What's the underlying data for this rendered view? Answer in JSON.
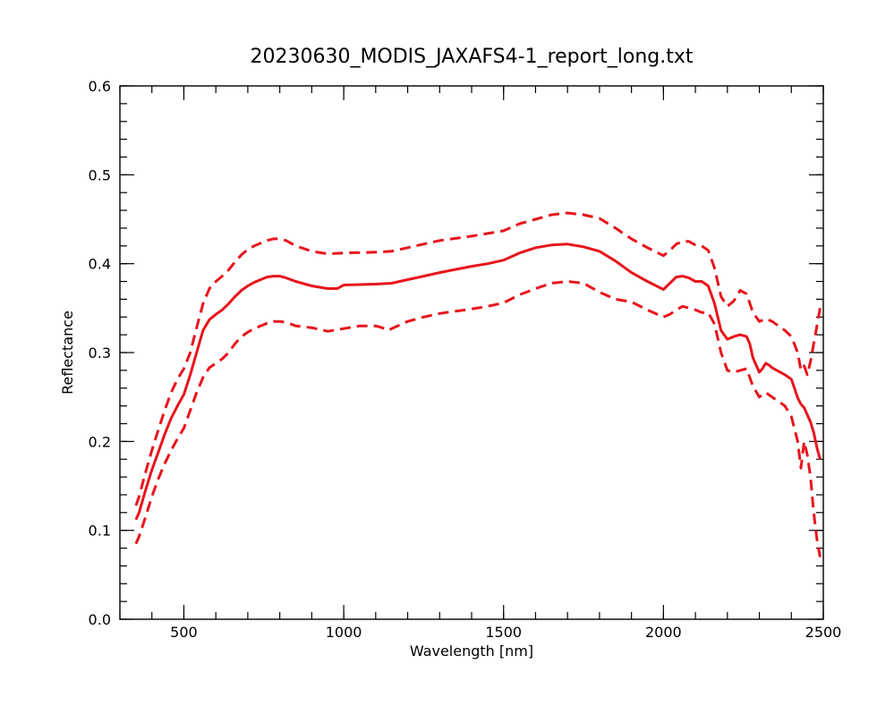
{
  "chart_data": {
    "type": "line",
    "title": "20230630_MODIS_JAXAFS4-1_report_long.txt",
    "xlabel": "Wavelength [nm]",
    "ylabel": "Reflectance",
    "xlim": [
      300,
      2500
    ],
    "ylim": [
      0.0,
      0.6
    ],
    "x_ticks": [
      500,
      1000,
      1500,
      2000,
      2500
    ],
    "x_tick_labels": [
      "500",
      "1000",
      "1500",
      "2000",
      "2500"
    ],
    "x_minor_step": 100,
    "y_ticks": [
      0.0,
      0.1,
      0.2,
      0.3,
      0.4,
      0.5,
      0.6
    ],
    "y_tick_labels": [
      "0.0",
      "0.1",
      "0.2",
      "0.3",
      "0.4",
      "0.5",
      "0.6"
    ],
    "y_minor_step": 0.02,
    "grid": false,
    "series_color": "#e8141c",
    "series": [
      {
        "style": "solid",
        "x": [
          350,
          360,
          380,
          400,
          420,
          440,
          460,
          480,
          500,
          520,
          540,
          560,
          580,
          600,
          620,
          640,
          660,
          680,
          700,
          720,
          740,
          760,
          780,
          800,
          820,
          850,
          900,
          950,
          980,
          1000,
          1100,
          1150,
          1200,
          1250,
          1300,
          1400,
          1450,
          1500,
          1550,
          1600,
          1650,
          1700,
          1750,
          1800,
          1850,
          1900,
          1950,
          2000,
          2020,
          2040,
          2060,
          2080,
          2100,
          2120,
          2140,
          2160,
          2180,
          2200,
          2220,
          2240,
          2260,
          2270,
          2280,
          2300,
          2310,
          2320,
          2330,
          2340,
          2360,
          2380,
          2400,
          2410,
          2420,
          2430,
          2440,
          2450,
          2460,
          2470,
          2480,
          2490
        ],
        "y": [
          0.112,
          0.12,
          0.145,
          0.168,
          0.188,
          0.208,
          0.226,
          0.24,
          0.253,
          0.275,
          0.3,
          0.325,
          0.337,
          0.343,
          0.348,
          0.355,
          0.363,
          0.37,
          0.375,
          0.379,
          0.382,
          0.385,
          0.386,
          0.386,
          0.384,
          0.38,
          0.375,
          0.372,
          0.372,
          0.376,
          0.377,
          0.378,
          0.382,
          0.386,
          0.39,
          0.397,
          0.4,
          0.404,
          0.412,
          0.418,
          0.421,
          0.422,
          0.419,
          0.414,
          0.403,
          0.39,
          0.38,
          0.371,
          0.378,
          0.385,
          0.386,
          0.384,
          0.38,
          0.38,
          0.375,
          0.355,
          0.325,
          0.315,
          0.318,
          0.32,
          0.318,
          0.31,
          0.294,
          0.278,
          0.282,
          0.288,
          0.286,
          0.283,
          0.279,
          0.275,
          0.27,
          0.26,
          0.249,
          0.242,
          0.238,
          0.23,
          0.222,
          0.21,
          0.193,
          0.18
        ]
      },
      {
        "style": "dashed",
        "x": [
          350,
          360,
          380,
          400,
          420,
          440,
          460,
          480,
          500,
          520,
          540,
          560,
          580,
          600,
          620,
          640,
          660,
          680,
          700,
          720,
          740,
          760,
          780,
          800,
          820,
          850,
          900,
          950,
          1000,
          1100,
          1150,
          1200,
          1250,
          1300,
          1400,
          1450,
          1500,
          1550,
          1600,
          1650,
          1700,
          1750,
          1800,
          1850,
          1900,
          1950,
          2000,
          2020,
          2040,
          2060,
          2080,
          2100,
          2120,
          2140,
          2160,
          2180,
          2200,
          2220,
          2240,
          2260,
          2280,
          2300,
          2320,
          2340,
          2360,
          2380,
          2400,
          2420,
          2430,
          2440,
          2450,
          2460,
          2470,
          2480,
          2490
        ],
        "y": [
          0.128,
          0.138,
          0.165,
          0.19,
          0.213,
          0.235,
          0.255,
          0.27,
          0.282,
          0.3,
          0.328,
          0.355,
          0.372,
          0.38,
          0.386,
          0.393,
          0.402,
          0.41,
          0.416,
          0.42,
          0.423,
          0.426,
          0.428,
          0.428,
          0.426,
          0.42,
          0.414,
          0.411,
          0.412,
          0.413,
          0.414,
          0.418,
          0.422,
          0.426,
          0.431,
          0.434,
          0.437,
          0.445,
          0.45,
          0.455,
          0.457,
          0.455,
          0.451,
          0.44,
          0.428,
          0.418,
          0.409,
          0.415,
          0.422,
          0.425,
          0.425,
          0.421,
          0.42,
          0.415,
          0.395,
          0.363,
          0.352,
          0.358,
          0.37,
          0.366,
          0.345,
          0.335,
          0.338,
          0.335,
          0.33,
          0.325,
          0.318,
          0.3,
          0.28,
          0.285,
          0.275,
          0.29,
          0.31,
          0.33,
          0.35
        ]
      },
      {
        "style": "dashed",
        "x": [
          350,
          360,
          380,
          400,
          420,
          440,
          460,
          480,
          500,
          520,
          540,
          560,
          580,
          600,
          620,
          640,
          660,
          680,
          700,
          720,
          740,
          760,
          780,
          800,
          820,
          850,
          900,
          950,
          1000,
          1050,
          1100,
          1120,
          1140,
          1150,
          1200,
          1250,
          1300,
          1400,
          1450,
          1500,
          1550,
          1600,
          1650,
          1700,
          1750,
          1800,
          1850,
          1900,
          1950,
          2000,
          2020,
          2040,
          2060,
          2080,
          2100,
          2120,
          2140,
          2160,
          2180,
          2200,
          2220,
          2240,
          2260,
          2280,
          2300,
          2320,
          2340,
          2360,
          2380,
          2400,
          2420,
          2430,
          2440,
          2450,
          2460,
          2470,
          2480,
          2490
        ],
        "y": [
          0.085,
          0.093,
          0.115,
          0.138,
          0.158,
          0.175,
          0.19,
          0.203,
          0.215,
          0.235,
          0.255,
          0.272,
          0.283,
          0.288,
          0.293,
          0.3,
          0.31,
          0.318,
          0.323,
          0.327,
          0.33,
          0.333,
          0.335,
          0.335,
          0.334,
          0.33,
          0.328,
          0.324,
          0.327,
          0.33,
          0.33,
          0.328,
          0.325,
          0.327,
          0.335,
          0.34,
          0.344,
          0.349,
          0.352,
          0.356,
          0.365,
          0.372,
          0.378,
          0.38,
          0.378,
          0.368,
          0.36,
          0.357,
          0.348,
          0.34,
          0.343,
          0.348,
          0.352,
          0.35,
          0.348,
          0.345,
          0.345,
          0.332,
          0.3,
          0.28,
          0.278,
          0.28,
          0.282,
          0.262,
          0.25,
          0.255,
          0.25,
          0.245,
          0.24,
          0.228,
          0.2,
          0.17,
          0.2,
          0.185,
          0.16,
          0.12,
          0.09,
          0.07
        ]
      }
    ]
  }
}
